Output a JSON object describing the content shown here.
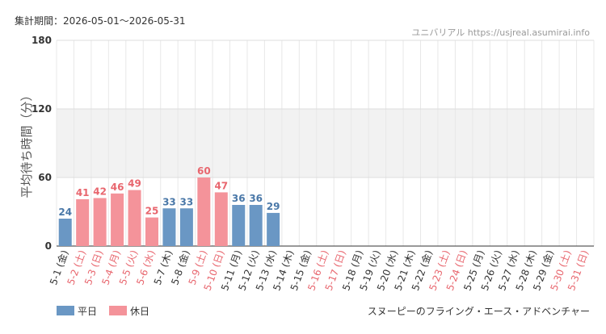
{
  "chart_data": {
    "type": "bar",
    "period": "集計期間：2026-05-01～2026-05-31",
    "source": "ユニバリアル  https://usjreal.asumirai.info",
    "ylabel": "平均待ち時間（分）",
    "footer": "スヌーピーのフライング・エース・アドベンチャー",
    "categories": [
      "5-1 (金)",
      "5-2 (土)",
      "5-3 (日)",
      "5-4 (月)",
      "5-5 (火)",
      "5-6 (水)",
      "5-7 (木)",
      "5-8 (金)",
      "5-9 (土)",
      "5-10 (日)",
      "5-11 (月)",
      "5-12 (火)",
      "5-13 (水)",
      "5-14 (木)",
      "5-15 (金)",
      "5-16 (土)",
      "5-17 (日)",
      "5-18 (月)",
      "5-19 (火)",
      "5-20 (水)",
      "5-21 (木)",
      "5-22 (金)",
      "5-23 (土)",
      "5-24 (日)",
      "5-25 (月)",
      "5-26 (火)",
      "5-27 (水)",
      "5-28 (木)",
      "5-29 (金)",
      "5-30 (土)",
      "5-31 (日)"
    ],
    "category_label_colors": [
      "#333",
      "#e8666e",
      "#e8666e",
      "#e8666e",
      "#e8666e",
      "#e8666e",
      "#333",
      "#333",
      "#e8666e",
      "#e8666e",
      "#333",
      "#333",
      "#333",
      "#333",
      "#333",
      "#e8666e",
      "#e8666e",
      "#333",
      "#333",
      "#333",
      "#333",
      "#333",
      "#e8666e",
      "#e8666e",
      "#333",
      "#333",
      "#333",
      "#333",
      "#333",
      "#e8666e",
      "#e8666e"
    ],
    "series": [
      {
        "name": "平日",
        "color": "#6a97c4",
        "label_color": "#4a78a8",
        "values": [
          24,
          null,
          null,
          null,
          null,
          null,
          33,
          33,
          null,
          null,
          36,
          36,
          29,
          null,
          null,
          null,
          null,
          null,
          null,
          null,
          null,
          null,
          null,
          null,
          null,
          null,
          null,
          null,
          null,
          null,
          null
        ]
      },
      {
        "name": "休日",
        "color": "#f4939a",
        "label_color": "#e8666e",
        "values": [
          null,
          41,
          42,
          46,
          49,
          25,
          null,
          null,
          60,
          47,
          null,
          null,
          null,
          null,
          null,
          null,
          null,
          null,
          null,
          null,
          null,
          null,
          null,
          null,
          null,
          null,
          null,
          null,
          null,
          null,
          null
        ]
      }
    ],
    "ylim": [
      0,
      180
    ],
    "yticks": [
      0,
      60,
      120,
      180
    ],
    "shaded_range": [
      60,
      120
    ],
    "grid": true
  }
}
